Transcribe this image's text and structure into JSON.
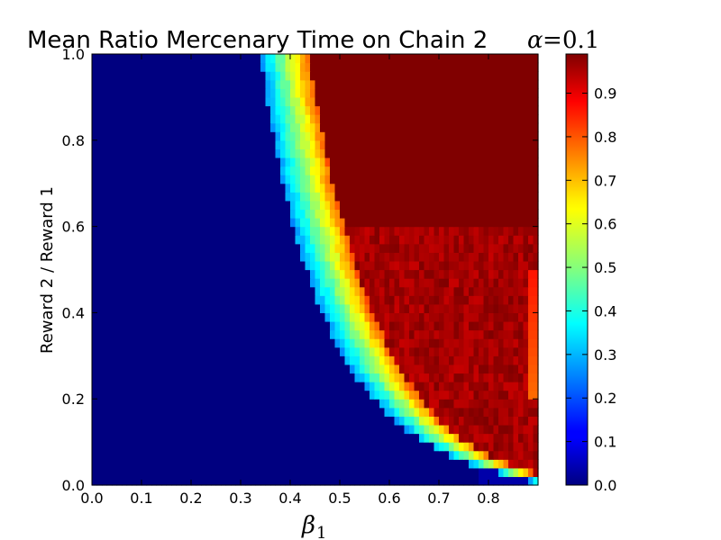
{
  "chart_data": {
    "type": "heatmap",
    "title": "Mean Ratio Mercenary Time on Chain 2",
    "title_math": {
      "symbol": "α",
      "equals": "=",
      "value": "0.1"
    },
    "xlabel": {
      "symbol": "β",
      "subscript": "1"
    },
    "ylabel": "Reward 2 / Reward 1",
    "x_ticks": [
      "0.0",
      "0.1",
      "0.2",
      "0.3",
      "0.4",
      "0.5",
      "0.6",
      "0.7",
      "0.8"
    ],
    "y_ticks": [
      "0.0",
      "0.2",
      "0.4",
      "0.6",
      "0.8",
      "1.0"
    ],
    "colorbar_ticks": [
      "0.0",
      "0.1",
      "0.2",
      "0.3",
      "0.4",
      "0.5",
      "0.6",
      "0.7",
      "0.8",
      "0.9"
    ],
    "xlim": [
      0.0,
      0.9
    ],
    "ylim": [
      0.0,
      1.0
    ],
    "clim": [
      0.0,
      0.99
    ],
    "colormap": "jet",
    "grid": false,
    "x_grid": [
      0.005,
      0.015,
      0.025,
      0.035,
      0.045,
      0.055,
      0.065,
      0.075,
      0.085,
      0.095,
      0.105,
      0.115,
      0.125,
      0.135,
      0.145,
      0.155,
      0.165,
      0.175,
      0.185,
      0.195,
      0.205,
      0.215,
      0.225,
      0.235,
      0.245,
      0.255,
      0.265,
      0.275,
      0.285,
      0.295,
      0.305,
      0.315,
      0.325,
      0.335,
      0.345,
      0.355,
      0.365,
      0.375,
      0.385,
      0.395,
      0.405,
      0.415,
      0.425,
      0.435,
      0.445,
      0.455,
      0.465,
      0.475,
      0.485,
      0.495,
      0.505,
      0.515,
      0.525,
      0.535,
      0.545,
      0.555,
      0.565,
      0.575,
      0.585,
      0.595,
      0.605,
      0.615,
      0.625,
      0.635,
      0.645,
      0.655,
      0.665,
      0.675,
      0.685,
      0.695,
      0.705,
      0.715,
      0.725,
      0.735,
      0.745,
      0.755,
      0.765,
      0.775,
      0.785,
      0.795,
      0.805,
      0.815,
      0.825,
      0.835,
      0.845,
      0.855,
      0.865,
      0.875,
      0.885,
      0.895
    ],
    "y_grid": [
      0.01,
      0.03,
      0.05,
      0.07,
      0.09,
      0.11,
      0.13,
      0.15,
      0.17,
      0.19,
      0.21,
      0.23,
      0.25,
      0.27,
      0.29,
      0.31,
      0.33,
      0.35,
      0.37,
      0.39,
      0.41,
      0.43,
      0.45,
      0.47,
      0.49,
      0.51,
      0.53,
      0.55,
      0.57,
      0.59,
      0.61,
      0.63,
      0.65,
      0.67,
      0.69,
      0.71,
      0.73,
      0.75,
      0.77,
      0.79,
      0.81,
      0.83,
      0.85,
      0.87,
      0.89,
      0.91,
      0.93,
      0.95,
      0.97,
      0.99
    ],
    "lower_edge_beta": [
      0.885,
      0.816,
      0.761,
      0.72,
      0.687,
      0.657,
      0.634,
      0.613,
      0.594,
      0.578,
      0.562,
      0.548,
      0.535,
      0.523,
      0.512,
      0.503,
      0.494,
      0.485,
      0.477,
      0.469,
      0.461,
      0.454,
      0.448,
      0.442,
      0.436,
      0.43,
      0.425,
      0.42,
      0.415,
      0.41,
      0.405,
      0.401,
      0.397,
      0.393,
      0.389,
      0.385,
      0.381,
      0.378,
      0.374,
      0.371,
      0.367,
      0.364,
      0.361,
      0.358,
      0.355,
      0.352,
      0.349,
      0.346,
      0.343,
      0.341
    ],
    "band_width_beta": [
      0.06,
      0.07,
      0.075,
      0.08,
      0.085,
      0.088,
      0.09,
      0.092,
      0.094,
      0.096,
      0.097,
      0.098,
      0.099,
      0.1,
      0.1,
      0.101,
      0.101,
      0.101,
      0.102,
      0.102,
      0.102,
      0.102,
      0.102,
      0.102,
      0.102,
      0.102,
      0.102,
      0.102,
      0.102,
      0.102,
      0.101,
      0.101,
      0.101,
      0.101,
      0.1,
      0.1,
      0.1,
      0.1,
      0.1,
      0.099,
      0.099,
      0.099,
      0.099,
      0.098,
      0.098,
      0.098,
      0.098,
      0.097,
      0.097,
      0.097
    ]
  }
}
